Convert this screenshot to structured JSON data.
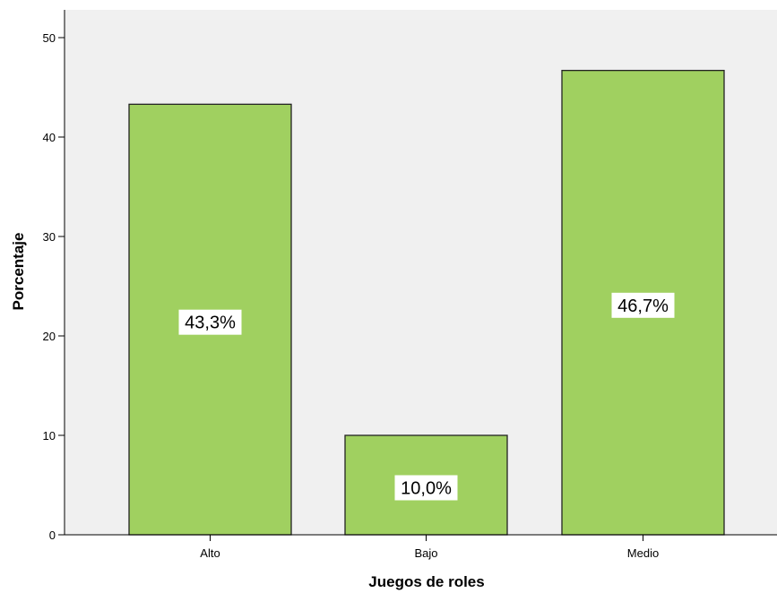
{
  "chart_data": {
    "type": "bar",
    "categories": [
      "Alto",
      "Bajo",
      "Medio"
    ],
    "values": [
      43.3,
      10.0,
      46.7
    ],
    "data_labels": [
      "43,3%",
      "10,0%",
      "46,7%"
    ],
    "xlabel": "Juegos de roles",
    "ylabel": "Porcentaje",
    "ylim": [
      0,
      50
    ],
    "yticks": [
      "0",
      "10",
      "20",
      "30",
      "40",
      "50"
    ],
    "grid": false,
    "legend": "none",
    "colors": {
      "bar": "#a0d060",
      "bar_edge": "#222222",
      "plot_background": "#f0f0f0",
      "label_background": "#ffffff"
    }
  }
}
